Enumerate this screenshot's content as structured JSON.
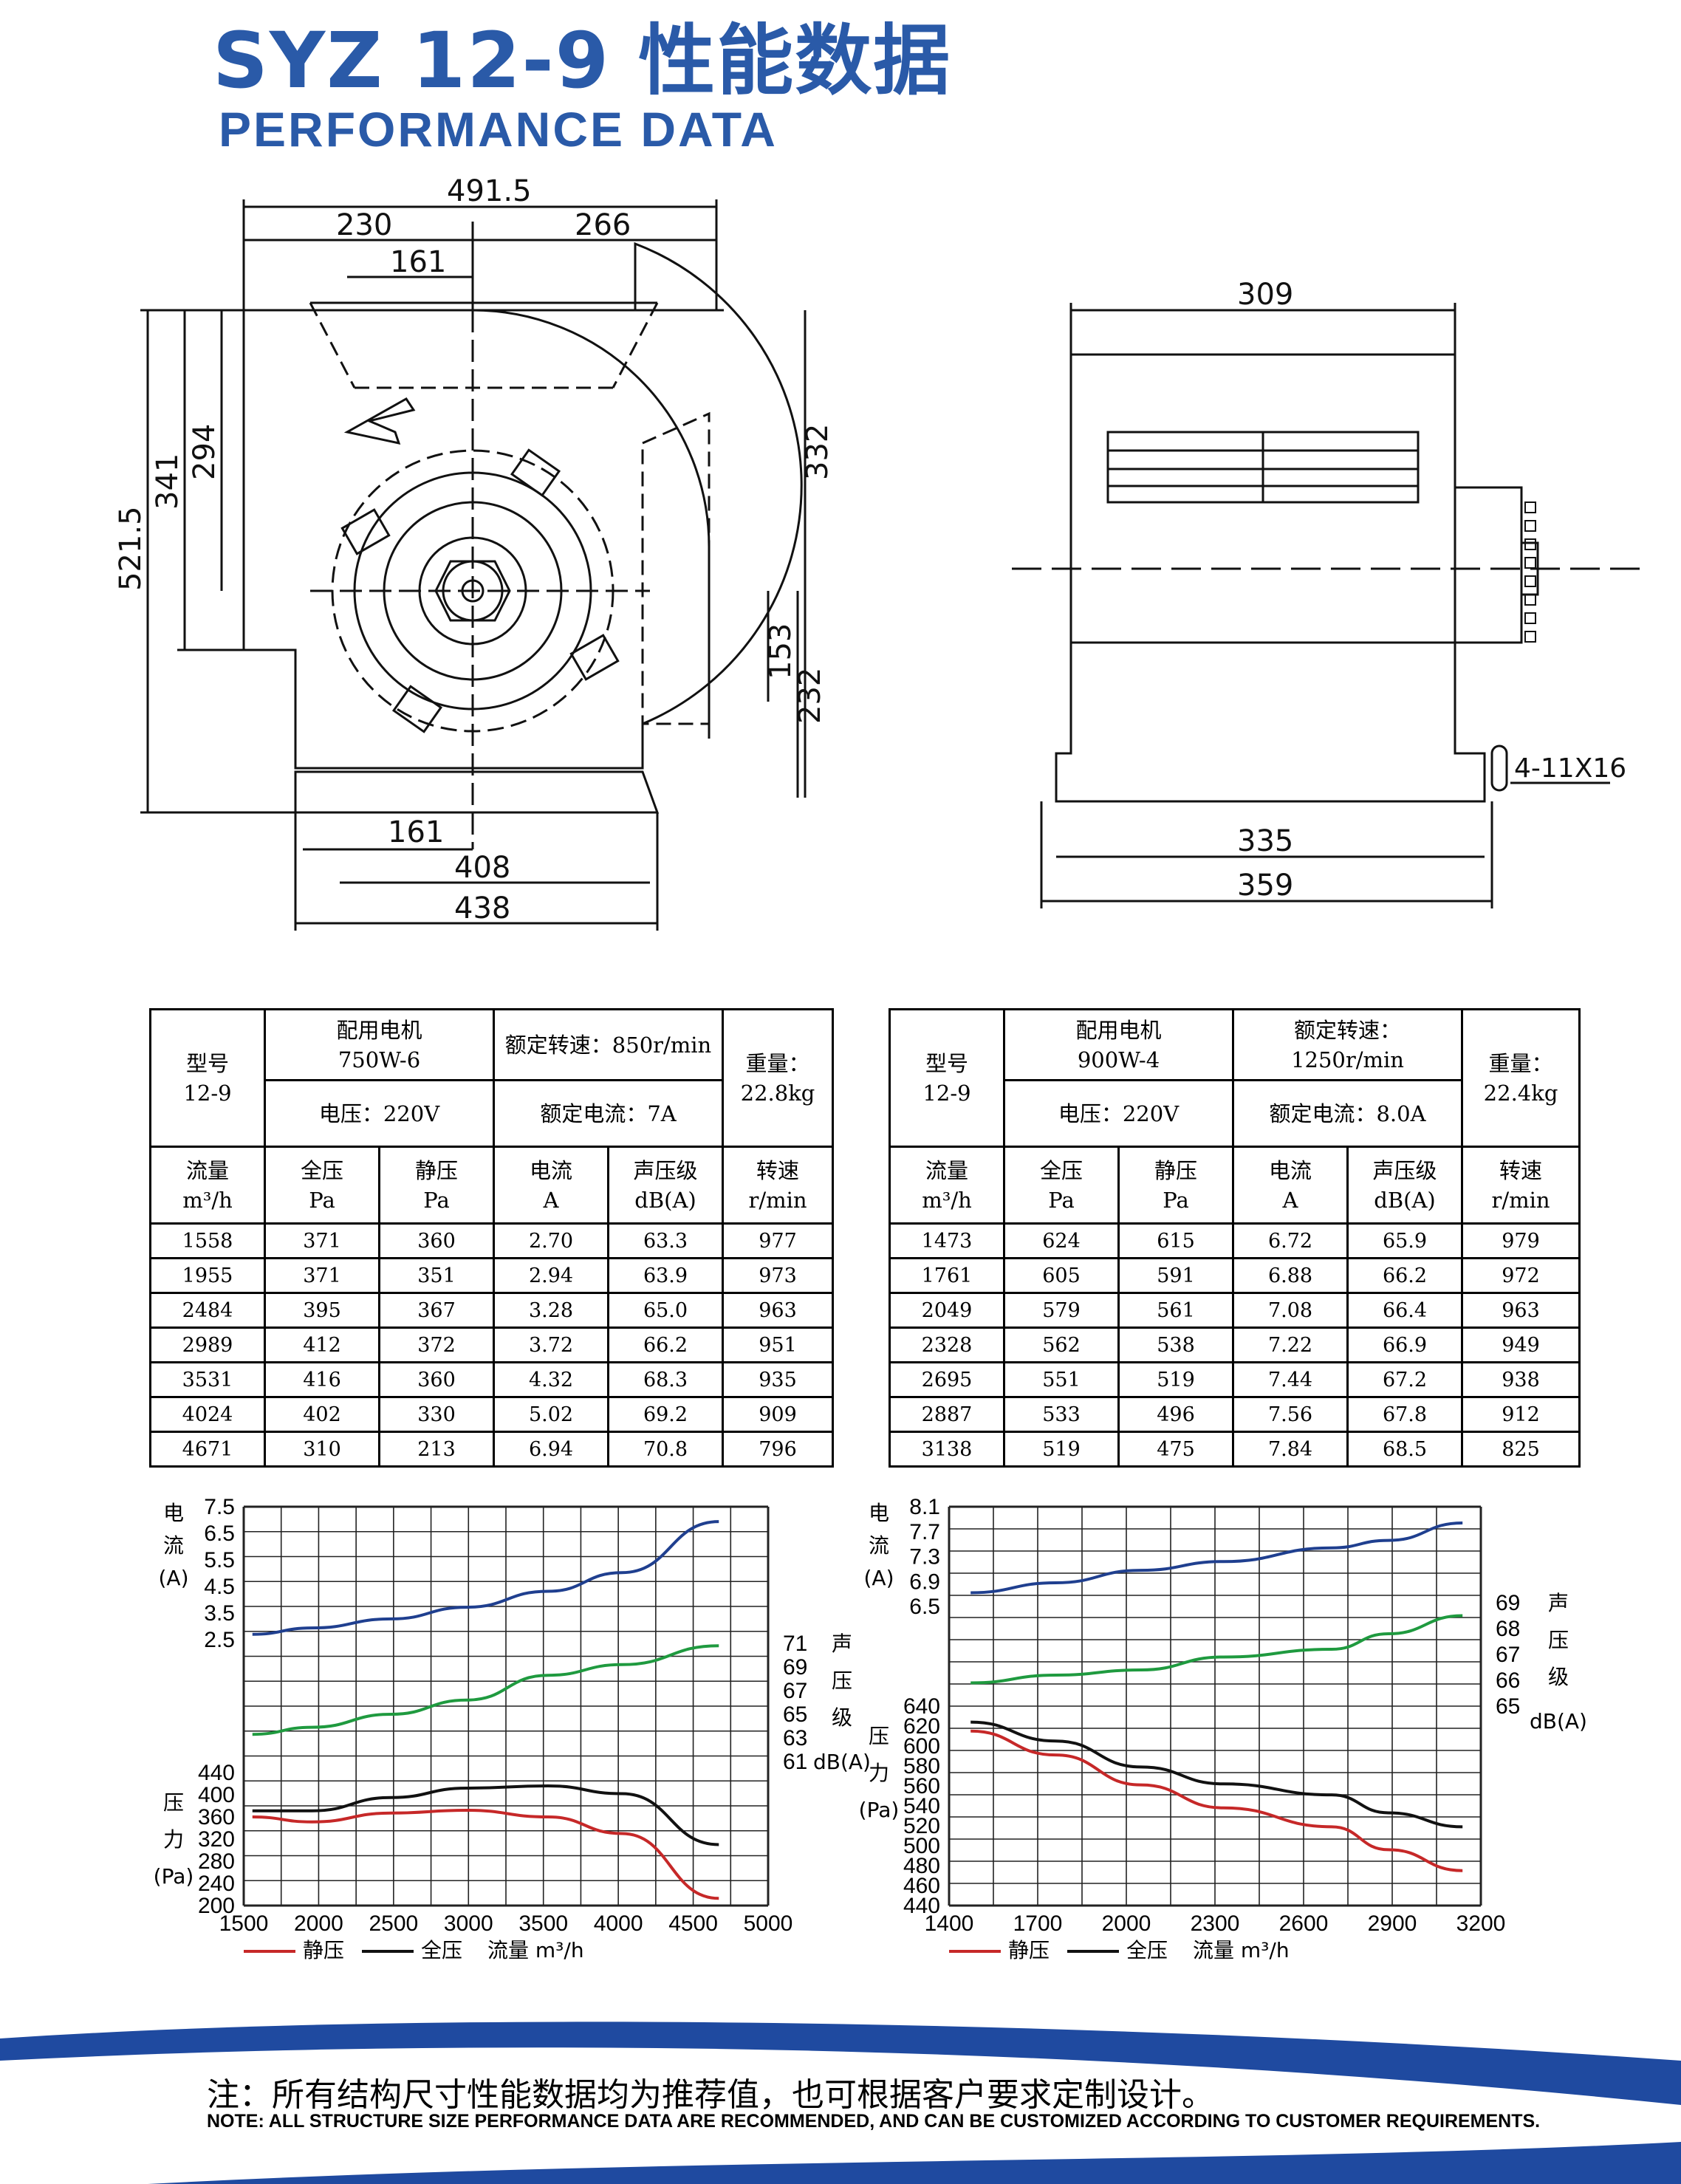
{
  "header": {
    "title": "SYZ 12-9 性能数据",
    "subtitle": "PERFORMANCE DATA"
  },
  "drawing": {
    "front_dims": [
      "491.5",
      "230",
      "266",
      "161",
      "521.5",
      "341",
      "294",
      "332",
      "153",
      "232",
      "161",
      "408",
      "438"
    ],
    "side_dims": [
      "309",
      "335",
      "359",
      "4-11X16"
    ]
  },
  "tables": [
    {
      "header": {
        "model_label": "型号",
        "model": "12-9",
        "motor_label": "配用电机",
        "motor": "750W-6",
        "speed": "额定转速：850r/min",
        "speed_value": "",
        "weight_label": "重量：",
        "weight": "22.8kg",
        "voltage": "电压：220V",
        "current": "额定电流：7A"
      },
      "columns": [
        {
          "name": "流量",
          "unit": "m³/h"
        },
        {
          "name": "全压",
          "unit": "Pa"
        },
        {
          "name": "静压",
          "unit": "Pa"
        },
        {
          "name": "电流",
          "unit": "A"
        },
        {
          "name": "声压级",
          "unit": "dB(A)"
        },
        {
          "name": "转速",
          "unit": "r/min"
        }
      ],
      "rows": [
        [
          "1558",
          "371",
          "360",
          "2.70",
          "63.3",
          "977"
        ],
        [
          "1955",
          "371",
          "351",
          "2.94",
          "63.9",
          "973"
        ],
        [
          "2484",
          "395",
          "367",
          "3.28",
          "65.0",
          "963"
        ],
        [
          "2989",
          "412",
          "372",
          "3.72",
          "66.2",
          "951"
        ],
        [
          "3531",
          "416",
          "360",
          "4.32",
          "68.3",
          "935"
        ],
        [
          "4024",
          "402",
          "330",
          "5.02",
          "69.2",
          "909"
        ],
        [
          "4671",
          "310",
          "213",
          "6.94",
          "70.8",
          "796"
        ]
      ]
    },
    {
      "header": {
        "model_label": "型号",
        "model": "12-9",
        "motor_label": "配用电机",
        "motor": "900W-4",
        "speed": "额定转速：",
        "speed_value": "1250r/min",
        "weight_label": "重量：",
        "weight": "22.4kg",
        "voltage": "电压：220V",
        "current": "额定电流：8.0A"
      },
      "columns": [
        {
          "name": "流量",
          "unit": "m³/h"
        },
        {
          "name": "全压",
          "unit": "Pa"
        },
        {
          "name": "静压",
          "unit": "Pa"
        },
        {
          "name": "电流",
          "unit": "A"
        },
        {
          "name": "声压级",
          "unit": "dB(A)"
        },
        {
          "name": "转速",
          "unit": "r/min"
        }
      ],
      "rows": [
        [
          "1473",
          "624",
          "615",
          "6.72",
          "65.9",
          "979"
        ],
        [
          "1761",
          "605",
          "591",
          "6.88",
          "66.2",
          "972"
        ],
        [
          "2049",
          "579",
          "561",
          "7.08",
          "66.4",
          "963"
        ],
        [
          "2328",
          "562",
          "538",
          "7.22",
          "66.9",
          "949"
        ],
        [
          "2695",
          "551",
          "519",
          "7.44",
          "67.2",
          "938"
        ],
        [
          "2887",
          "533",
          "496",
          "7.56",
          "67.8",
          "912"
        ],
        [
          "3138",
          "519",
          "475",
          "7.84",
          "68.5",
          "825"
        ]
      ]
    }
  ],
  "chart_data": [
    {
      "type": "line",
      "x": [
        1558,
        1955,
        2484,
        2989,
        3531,
        4024,
        4671
      ],
      "xlim": [
        1500,
        5000
      ],
      "x_ticks": [
        "1500",
        "2000",
        "2500",
        "3000",
        "3500",
        "4000",
        "4500",
        "5000"
      ],
      "current_axis": {
        "label": "电流(A)",
        "ticks": [
          "7.5",
          "6.5",
          "5.5",
          "4.5",
          "3.5",
          "2.5"
        ],
        "range": [
          2.5,
          7.5
        ]
      },
      "noise_axis": {
        "label": "声压级",
        "unit": "dB(A)",
        "ticks": [
          "71",
          "69",
          "67",
          "65",
          "63",
          "61"
        ],
        "range": [
          61,
          71
        ]
      },
      "pressure_axis": {
        "label": "压力",
        "unit": "(Pa)",
        "ticks": [
          "440",
          "400",
          "360",
          "320",
          "280",
          "240",
          "200"
        ],
        "range": [
          200,
          440
        ]
      },
      "series": [
        {
          "name": "静压",
          "axis": "pressure",
          "color": "#c62828",
          "values": [
            360,
            351,
            367,
            372,
            360,
            330,
            213
          ]
        },
        {
          "name": "全压",
          "axis": "pressure",
          "color": "#111111",
          "values": [
            371,
            371,
            395,
            412,
            416,
            402,
            310
          ]
        },
        {
          "axis": "current",
          "color": "#1f3f8f",
          "values": [
            2.7,
            2.94,
            3.28,
            3.72,
            4.32,
            5.02,
            6.94
          ]
        },
        {
          "axis": "noise",
          "color": "#1f9a3f",
          "values": [
            63.3,
            63.9,
            65.0,
            66.2,
            68.3,
            69.2,
            70.8
          ]
        }
      ],
      "legend": {
        "static": "静压",
        "total": "全压",
        "flow": "流量 m³/h"
      }
    },
    {
      "type": "line",
      "x": [
        1473,
        1761,
        2049,
        2328,
        2695,
        2887,
        3138
      ],
      "xlim": [
        1400,
        3200
      ],
      "x_ticks": [
        "1400",
        "1700",
        "2000",
        "2300",
        "2600",
        "2900",
        "3200"
      ],
      "current_axis": {
        "label": "电流(A)",
        "ticks": [
          "8.1",
          "7.7",
          "7.3",
          "6.9",
          "6.5"
        ],
        "range": [
          6.5,
          8.1
        ]
      },
      "noise_axis": {
        "label": "声压级",
        "unit": "dB(A)",
        "ticks": [
          "69",
          "68",
          "67",
          "66",
          "65"
        ],
        "range": [
          65,
          69
        ]
      },
      "pressure_axis": {
        "label": "压力",
        "unit": "(Pa)",
        "ticks": [
          "640",
          "620",
          "600",
          "580",
          "560",
          "540",
          "520",
          "500",
          "480",
          "460",
          "440"
        ],
        "range": [
          440,
          640
        ]
      },
      "series": [
        {
          "name": "静压",
          "axis": "pressure",
          "color": "#c62828",
          "values": [
            615,
            591,
            561,
            538,
            519,
            496,
            475
          ]
        },
        {
          "name": "全压",
          "axis": "pressure",
          "color": "#111111",
          "values": [
            624,
            605,
            579,
            562,
            551,
            533,
            519
          ]
        },
        {
          "axis": "current",
          "color": "#1f3f8f",
          "values": [
            6.72,
            6.88,
            7.08,
            7.22,
            7.44,
            7.56,
            7.84
          ]
        },
        {
          "axis": "noise",
          "color": "#1f9a3f",
          "values": [
            65.9,
            66.2,
            66.4,
            66.9,
            67.2,
            67.8,
            68.5
          ]
        }
      ],
      "legend": {
        "static": "静压",
        "total": "全压",
        "flow": "流量 m³/h"
      }
    }
  ],
  "footer": {
    "note_cn": "注：所有结构尺寸性能数据均为推荐值，也可根据客户要求定制设计。",
    "note_en": "NOTE: ALL STRUCTURE SIZE PERFORMANCE DATA ARE RECOMMENDED, AND CAN BE CUSTOMIZED ACCORDING TO CUSTOMER REQUIREMENTS."
  },
  "colors": {
    "brand": "#2a5aa8",
    "footer_band": "#1f4aa0",
    "static": "#c62828",
    "total": "#111111",
    "current": "#1f3f8f",
    "noise": "#1f9a3f"
  }
}
